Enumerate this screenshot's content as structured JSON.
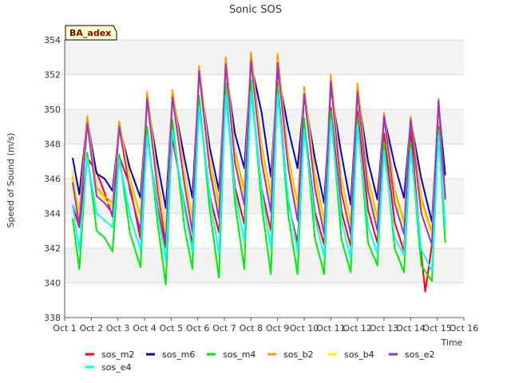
{
  "chart_data": {
    "type": "line",
    "title": "Sonic SOS",
    "xlabel": "Time",
    "ylabel": "Speed of Sound (m/s)",
    "ylim": [
      338,
      354
    ],
    "yticks": [
      338,
      340,
      342,
      344,
      346,
      348,
      350,
      352,
      354
    ],
    "xlim": [
      1,
      16
    ],
    "xticks": [
      {
        "x": 1,
        "label": "Oct 1"
      },
      {
        "x": 2,
        "label": "Oct 2"
      },
      {
        "x": 3,
        "label": "Oct 3"
      },
      {
        "x": 4,
        "label": "Oct 4"
      },
      {
        "x": 5,
        "label": "Oct 5"
      },
      {
        "x": 6,
        "label": "Oct 6"
      },
      {
        "x": 7,
        "label": "Oct 7"
      },
      {
        "x": 8,
        "label": "Oct 8"
      },
      {
        "x": 9,
        "label": "Oct 9"
      },
      {
        "x": 10,
        "label": "Oct 10"
      },
      {
        "x": 11,
        "label": "Oct 11"
      },
      {
        "x": 12,
        "label": "Oct 12"
      },
      {
        "x": 13,
        "label": "Oct 13"
      },
      {
        "x": 14,
        "label": "Oct 14"
      },
      {
        "x": 15,
        "label": "Oct 15"
      },
      {
        "x": 16,
        "label": "Oct 16"
      }
    ],
    "grid": true,
    "badge": "BA_adex",
    "legend_position": "bottom",
    "series": [
      {
        "name": "sos_m2",
        "color": "#ff0000",
        "x": [
          1.3,
          1.55,
          1.85,
          2.2,
          2.5,
          2.8,
          3.05,
          3.45,
          3.85,
          4.1,
          4.5,
          4.8,
          5.05,
          5.5,
          5.8,
          6.05,
          6.45,
          6.8,
          7.05,
          7.4,
          7.75,
          8.0,
          8.4,
          8.75,
          9.0,
          9.4,
          9.75,
          10.0,
          10.4,
          10.75,
          11.0,
          11.4,
          11.75,
          12.0,
          12.4,
          12.75,
          13.0,
          13.4,
          13.75,
          14.0,
          14.4,
          14.55,
          14.8,
          15.05,
          15.3
        ],
        "y": [
          344.5,
          343.2,
          347.2,
          346.4,
          345.2,
          343.8,
          347.3,
          345.6,
          342.5,
          348.4,
          344.3,
          342.0,
          348.3,
          344.5,
          342.2,
          350.4,
          345.0,
          342.9,
          351.0,
          345.5,
          343.4,
          351.2,
          345.4,
          343.0,
          351.5,
          344.6,
          342.3,
          349.2,
          344.1,
          342.2,
          350.1,
          344.1,
          342.1,
          349.9,
          344.2,
          342.3,
          348.6,
          343.5,
          341.8,
          348.9,
          341.6,
          339.5,
          342.2,
          349.0,
          345.0
        ]
      },
      {
        "name": "sos_m6",
        "color": "#0000cc",
        "x": [
          1.3,
          1.55,
          1.85,
          2.2,
          2.5,
          2.8,
          3.05,
          3.45,
          3.85,
          4.1,
          4.5,
          4.8,
          5.05,
          5.5,
          5.8,
          6.05,
          6.45,
          6.8,
          7.05,
          7.4,
          7.75,
          8.0,
          8.4,
          8.75,
          9.0,
          9.4,
          9.75,
          10.0,
          10.4,
          10.75,
          11.0,
          11.4,
          11.75,
          12.0,
          12.4,
          12.75,
          13.0,
          13.4,
          13.75,
          14.0,
          14.4,
          14.8,
          15.05,
          15.3
        ],
        "y": [
          347.2,
          345.1,
          349.4,
          346.3,
          346.0,
          345.3,
          349.0,
          346.6,
          344.9,
          350.5,
          346.8,
          344.3,
          350.8,
          347.2,
          344.9,
          352.0,
          347.8,
          345.3,
          352.4,
          348.6,
          346.6,
          352.7,
          349.8,
          346.1,
          352.2,
          348.9,
          346.6,
          350.8,
          347.2,
          344.6,
          351.2,
          347.4,
          344.5,
          351.1,
          347.0,
          344.8,
          349.6,
          346.8,
          344.9,
          349.4,
          346.0,
          343.5,
          350.3,
          346.2
        ]
      },
      {
        "name": "sos_m4",
        "color": "#00ee00",
        "x": [
          1.3,
          1.55,
          1.85,
          2.2,
          2.5,
          2.8,
          3.05,
          3.45,
          3.85,
          4.1,
          4.5,
          4.8,
          5.05,
          5.5,
          5.8,
          6.05,
          6.45,
          6.8,
          7.05,
          7.4,
          7.75,
          8.0,
          8.4,
          8.75,
          9.0,
          9.4,
          9.75,
          10.0,
          10.4,
          10.75,
          11.0,
          11.4,
          11.75,
          12.0,
          12.4,
          12.75,
          13.0,
          13.4,
          13.75,
          14.0,
          14.4,
          14.8,
          15.05,
          15.3
        ],
        "y": [
          343.7,
          340.8,
          347.5,
          343.0,
          342.6,
          341.8,
          347.4,
          342.9,
          340.9,
          349.0,
          343.3,
          339.9,
          349.4,
          343.2,
          340.8,
          350.8,
          344.2,
          340.3,
          351.5,
          344.6,
          340.8,
          351.7,
          344.5,
          340.5,
          351.4,
          343.9,
          340.5,
          349.5,
          342.6,
          340.5,
          349.9,
          342.5,
          340.6,
          349.5,
          342.3,
          341.0,
          348.1,
          342.0,
          340.6,
          348.1,
          341.0,
          340.1,
          348.8,
          342.3
        ]
      },
      {
        "name": "sos_b2",
        "color": "#ff9900",
        "x": [
          1.3,
          1.55,
          1.85,
          2.2,
          2.5,
          2.8,
          3.05,
          3.45,
          3.85,
          4.1,
          4.5,
          4.8,
          5.05,
          5.5,
          5.8,
          6.05,
          6.45,
          6.8,
          7.05,
          7.4,
          7.75,
          8.0,
          8.4,
          8.75,
          9.0,
          9.4,
          9.75,
          10.0,
          10.4,
          10.75,
          11.0,
          11.4,
          11.75,
          12.0,
          12.4,
          12.75,
          13.0,
          13.4,
          13.75,
          14.0,
          14.4,
          14.8,
          15.05,
          15.3
        ],
        "y": [
          346.2,
          344.0,
          349.6,
          345.5,
          345.0,
          344.6,
          349.3,
          346.0,
          343.8,
          351.0,
          345.9,
          343.0,
          351.1,
          346.4,
          343.6,
          352.5,
          347.2,
          344.5,
          353.0,
          347.6,
          345.3,
          353.3,
          347.9,
          345.0,
          353.2,
          347.3,
          344.5,
          351.3,
          346.4,
          343.5,
          352.0,
          346.0,
          343.4,
          351.5,
          346.0,
          343.7,
          349.8,
          345.4,
          343.5,
          349.6,
          344.9,
          342.9,
          350.6,
          344.9
        ]
      },
      {
        "name": "sos_b4",
        "color": "#ffee00",
        "x": [
          1.3,
          1.55,
          1.85,
          2.2,
          2.5,
          2.8,
          3.05,
          3.45,
          3.85,
          4.1,
          4.5,
          4.8,
          5.05,
          5.5,
          5.8,
          6.05,
          6.45,
          6.8,
          7.05,
          7.4,
          7.75,
          8.0,
          8.4,
          8.75,
          9.0,
          9.4,
          9.75,
          10.0,
          10.4,
          10.75,
          11.0,
          11.4,
          11.75,
          12.0,
          12.4,
          12.75,
          13.0,
          13.4,
          13.75,
          14.0,
          14.4,
          14.8,
          15.05,
          15.3
        ],
        "y": [
          346.5,
          343.7,
          349.2,
          345.3,
          344.8,
          344.4,
          349.0,
          345.8,
          343.6,
          350.6,
          345.7,
          342.9,
          350.7,
          346.2,
          343.4,
          352.0,
          347.0,
          344.2,
          352.5,
          347.3,
          345.0,
          352.8,
          347.6,
          344.8,
          352.8,
          347.0,
          344.3,
          351.0,
          346.1,
          343.3,
          351.5,
          345.8,
          343.2,
          351.0,
          345.8,
          343.5,
          349.5,
          345.1,
          343.3,
          349.3,
          344.6,
          342.7,
          350.2,
          344.7
        ]
      },
      {
        "name": "sos_e2",
        "color": "#9933cc",
        "x": [
          1.3,
          1.55,
          1.85,
          2.2,
          2.5,
          2.8,
          3.05,
          3.45,
          3.85,
          4.1,
          4.5,
          4.8,
          5.05,
          5.5,
          5.8,
          6.05,
          6.45,
          6.8,
          7.05,
          7.4,
          7.75,
          8.0,
          8.4,
          8.75,
          9.0,
          9.4,
          9.75,
          10.0,
          10.4,
          10.75,
          11.0,
          11.4,
          11.75,
          12.0,
          12.4,
          12.75,
          13.0,
          13.4,
          13.75,
          14.0,
          14.4,
          14.8,
          15.05,
          15.3
        ],
        "y": [
          345.8,
          343.3,
          349.2,
          345.0,
          344.6,
          344.0,
          349.0,
          345.3,
          343.0,
          350.6,
          345.2,
          342.3,
          350.7,
          345.7,
          342.9,
          352.2,
          346.5,
          343.7,
          352.6,
          346.9,
          344.5,
          352.8,
          347.0,
          344.1,
          352.7,
          346.6,
          343.6,
          350.9,
          345.5,
          342.8,
          351.6,
          345.2,
          342.8,
          351.0,
          345.3,
          343.0,
          349.6,
          344.6,
          342.8,
          349.4,
          344.0,
          342.2,
          350.5,
          344.8
        ]
      },
      {
        "name": "sos_e4",
        "color": "#00ffff",
        "x": [
          1.3,
          1.55,
          1.85,
          2.2,
          2.5,
          2.8,
          3.05,
          3.45,
          3.85,
          4.1,
          4.5,
          4.8,
          5.05,
          5.5,
          5.8,
          6.05,
          6.45,
          6.8,
          7.05,
          7.4,
          7.75,
          8.0,
          8.4,
          8.75,
          9.0,
          9.4,
          9.75,
          10.0,
          10.4,
          10.75,
          11.0,
          11.4,
          11.75,
          12.0,
          12.4,
          12.75,
          13.0,
          13.4,
          13.75,
          14.0,
          14.4,
          14.8,
          15.05,
          15.3
        ],
        "y": [
          344.5,
          341.9,
          347.2,
          344.0,
          343.6,
          343.2,
          347.1,
          343.9,
          341.9,
          348.5,
          344.0,
          341.3,
          348.8,
          344.3,
          341.8,
          350.2,
          345.0,
          341.7,
          350.8,
          345.2,
          342.4,
          351.0,
          345.3,
          342.0,
          350.9,
          344.8,
          341.8,
          348.8,
          343.8,
          341.5,
          349.4,
          343.6,
          341.4,
          349.1,
          343.3,
          341.7,
          347.6,
          342.6,
          341.6,
          347.7,
          341.9,
          340.7,
          348.5,
          343.3
        ]
      }
    ]
  }
}
